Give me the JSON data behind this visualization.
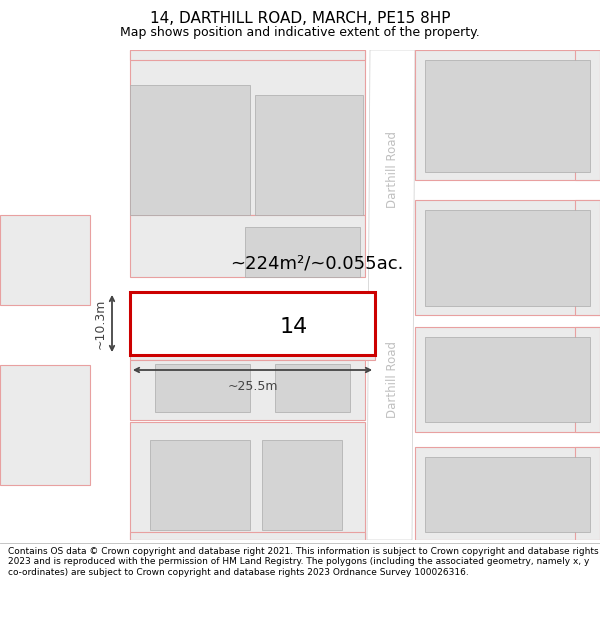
{
  "title": "14, DARTHILL ROAD, MARCH, PE15 8HP",
  "subtitle": "Map shows position and indicative extent of the property.",
  "footer": "Contains OS data © Crown copyright and database right 2021. This information is subject to Crown copyright and database rights 2023 and is reproduced with the permission of HM Land Registry. The polygons (including the associated geometry, namely x, y co-ordinates) are subject to Crown copyright and database rights 2023 Ordnance Survey 100026316.",
  "area_text": "~224m²/~0.055ac.",
  "number_text": "14",
  "width_label": "~25.5m",
  "height_label": "~10.3m",
  "road_label_top": "Darthill Road",
  "road_label_bottom": "Darthill Road",
  "map_bg": "#f0f0f0",
  "road_fill": "#ffffff",
  "road_edge": "#cccccc",
  "parcel_fill": "#ebebeb",
  "parcel_edge": "#e8a0a0",
  "building_fill": "#d4d4d4",
  "building_edge": "#aaaaaa",
  "highlight_edge": "#cc0000",
  "highlight_fill": "#ffffff",
  "dim_color": "#444444",
  "road_label_color": "#c0c0c0",
  "title_size": 11,
  "subtitle_size": 9,
  "footer_size": 6.5,
  "area_text_size": 13,
  "number_text_size": 16,
  "dim_label_size": 9,
  "road_label_size": 8.5
}
